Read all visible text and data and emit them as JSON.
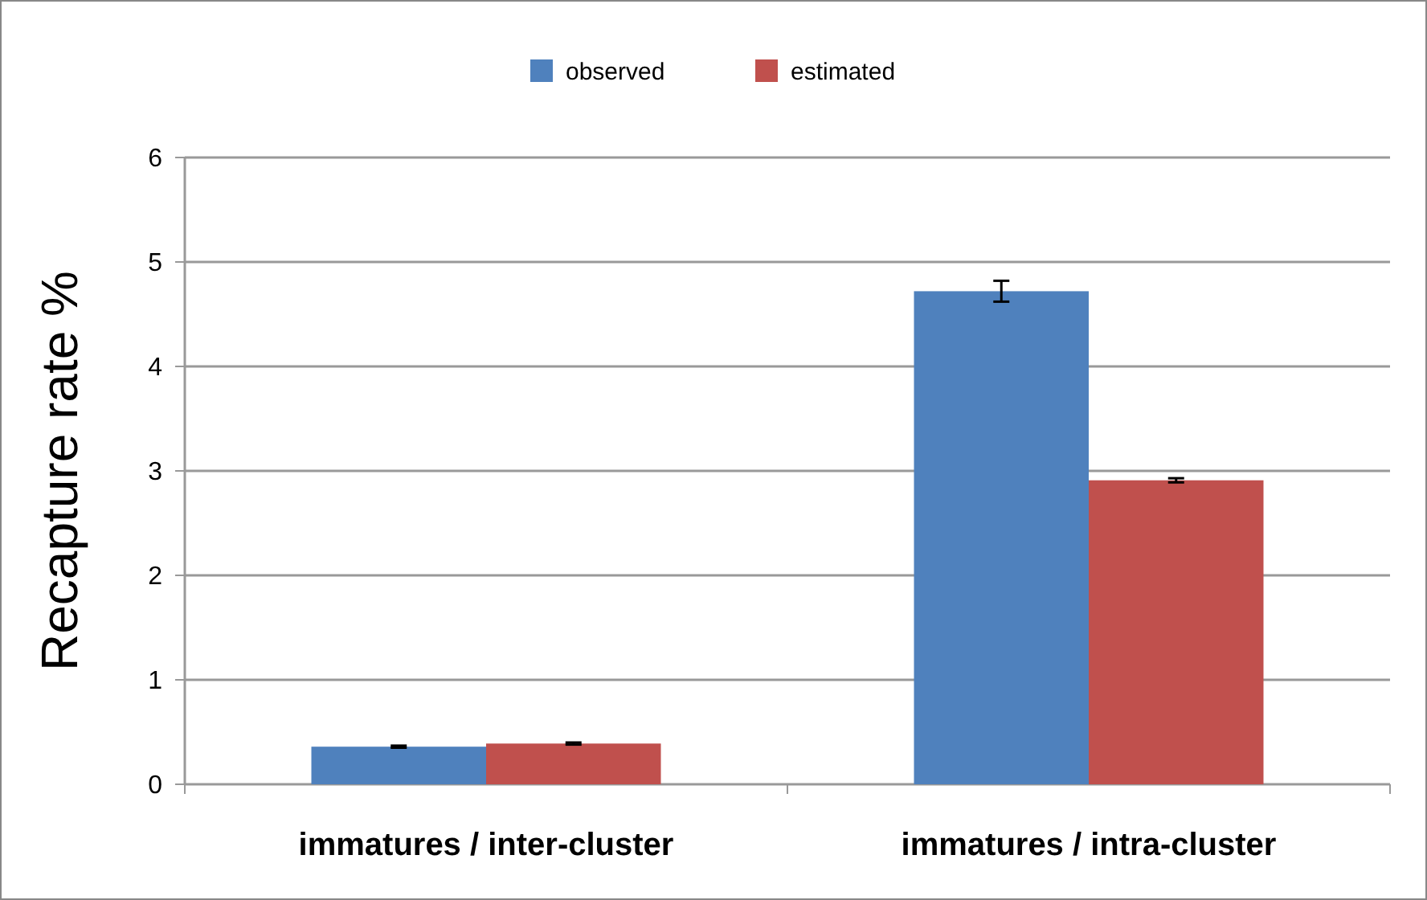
{
  "chart_data": {
    "type": "bar",
    "ylabel": "Recapture rate %",
    "categories": [
      "immatures / inter-cluster",
      "immatures / intra-cluster"
    ],
    "series": [
      {
        "name": "observed",
        "color": "#4f81bd",
        "values": [
          0.36,
          4.72
        ],
        "errors": [
          0.01,
          0.1
        ]
      },
      {
        "name": "estimated",
        "color": "#c0504d",
        "values": [
          0.39,
          2.91
        ],
        "errors": [
          0.01,
          0.02
        ]
      }
    ],
    "ylim": [
      0,
      6
    ],
    "yticks": [
      0,
      1,
      2,
      3,
      4,
      5,
      6
    ],
    "grid": "y",
    "legend": "top"
  }
}
